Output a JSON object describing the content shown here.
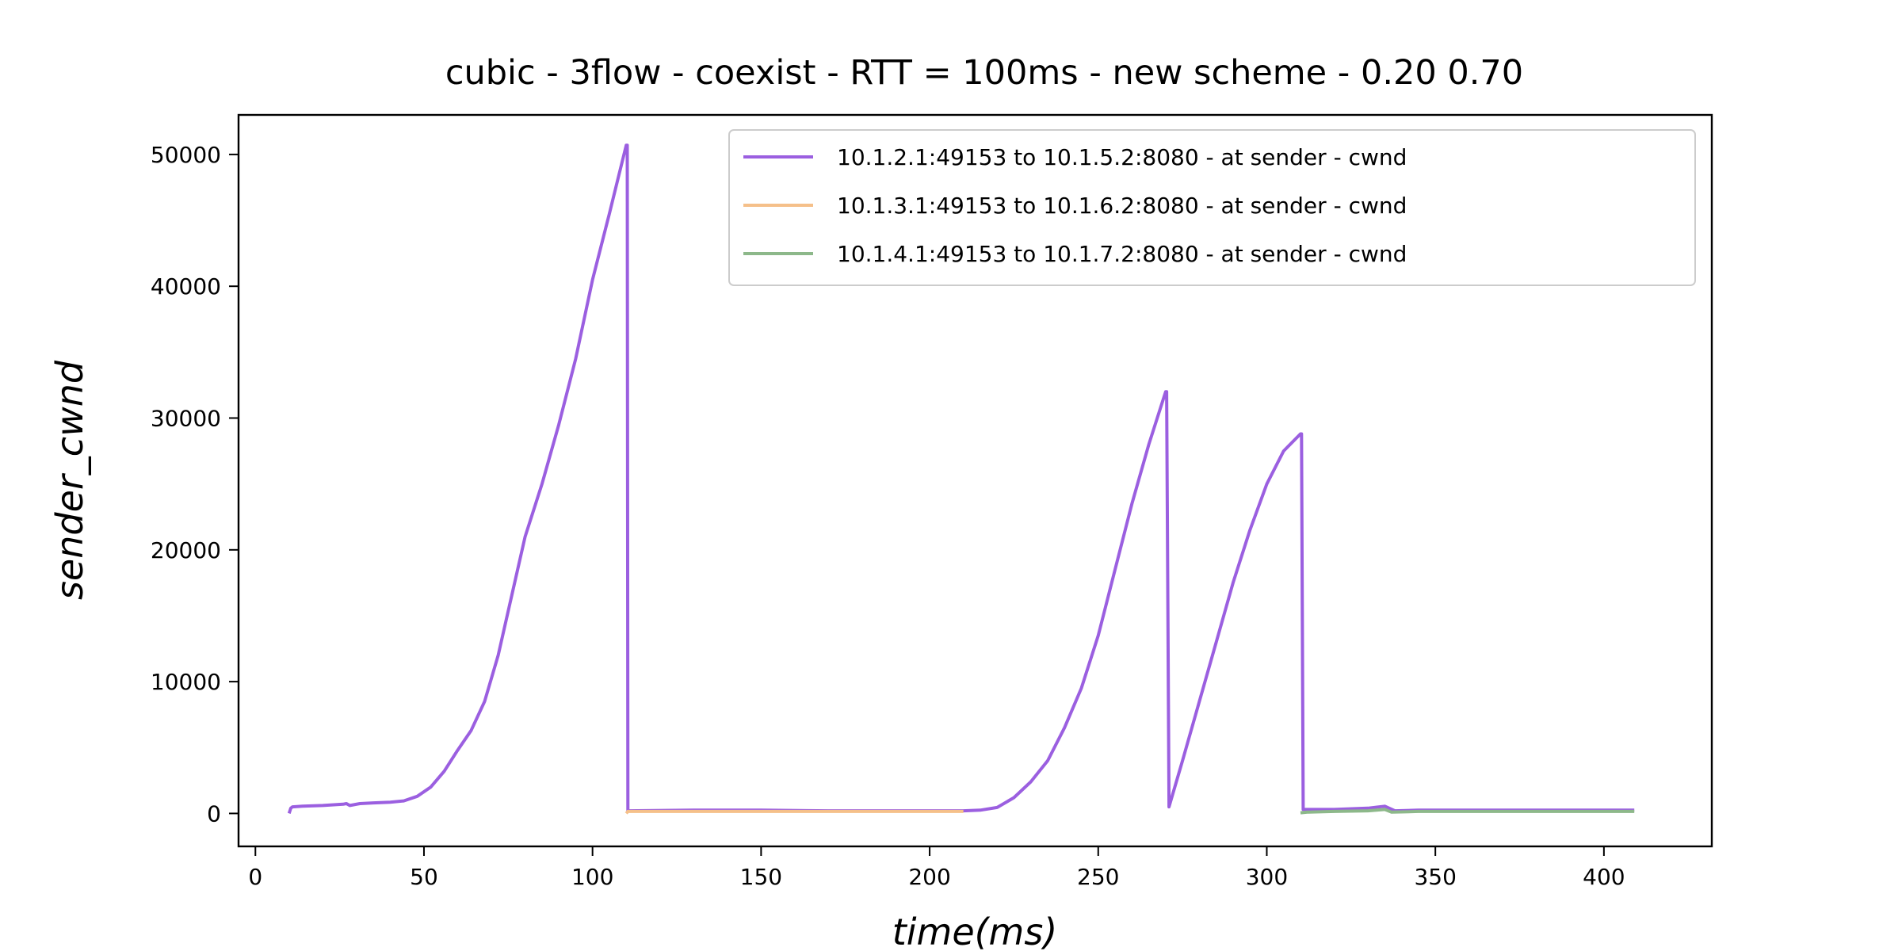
{
  "chart_data": {
    "type": "line",
    "title": "cubic - 3flow - coexist - RTT = 100ms - new scheme - 0.20 0.70",
    "xlabel": "time(ms)",
    "ylabel": "sender_cwnd",
    "xlim": [
      -5,
      432
    ],
    "ylim": [
      -2500,
      53000
    ],
    "xticks": [
      0,
      50,
      100,
      150,
      200,
      250,
      300,
      350,
      400
    ],
    "yticks": [
      0,
      10000,
      20000,
      30000,
      40000,
      50000
    ],
    "grid": false,
    "legend_position": "top-right",
    "series": [
      {
        "name": "10.1.2.1:49153 to 10.1.5.2:8080 - at sender - cwnd",
        "color": "#9b5fe0",
        "points": [
          [
            10,
            0
          ],
          [
            10.5,
            400
          ],
          [
            11,
            500
          ],
          [
            14,
            550
          ],
          [
            20,
            600
          ],
          [
            26,
            700
          ],
          [
            27,
            750
          ],
          [
            28,
            600
          ],
          [
            31,
            750
          ],
          [
            35,
            800
          ],
          [
            40,
            850
          ],
          [
            44,
            950
          ],
          [
            48,
            1300
          ],
          [
            52,
            2000
          ],
          [
            56,
            3200
          ],
          [
            60,
            4800
          ],
          [
            64,
            6300
          ],
          [
            68,
            8500
          ],
          [
            72,
            12000
          ],
          [
            76,
            16500
          ],
          [
            80,
            21000
          ],
          [
            85,
            25000
          ],
          [
            90,
            29500
          ],
          [
            95,
            34500
          ],
          [
            100,
            40500
          ],
          [
            105,
            45500
          ],
          [
            110,
            50700
          ],
          [
            110.3,
            50700
          ],
          [
            110.5,
            200
          ],
          [
            130,
            250
          ],
          [
            150,
            250
          ],
          [
            170,
            200
          ],
          [
            190,
            200
          ],
          [
            210,
            200
          ],
          [
            215,
            250
          ],
          [
            220,
            450
          ],
          [
            225,
            1200
          ],
          [
            230,
            2400
          ],
          [
            235,
            4000
          ],
          [
            240,
            6500
          ],
          [
            245,
            9500
          ],
          [
            250,
            13500
          ],
          [
            255,
            18500
          ],
          [
            260,
            23500
          ],
          [
            265,
            28000
          ],
          [
            270,
            32000
          ],
          [
            270.3,
            32000
          ],
          [
            271,
            500
          ],
          [
            275,
            4000
          ],
          [
            280,
            8500
          ],
          [
            285,
            13000
          ],
          [
            290,
            17500
          ],
          [
            295,
            21500
          ],
          [
            300,
            25000
          ],
          [
            305,
            27500
          ],
          [
            310,
            28800
          ],
          [
            310.3,
            28800
          ],
          [
            310.8,
            300
          ],
          [
            320,
            300
          ],
          [
            330,
            400
          ],
          [
            335,
            550
          ],
          [
            338,
            200
          ],
          [
            345,
            250
          ],
          [
            360,
            250
          ],
          [
            380,
            250
          ],
          [
            400,
            250
          ],
          [
            409,
            250
          ]
        ]
      },
      {
        "name": "10.1.3.1:49153 to 10.1.6.2:8080 - at sender - cwnd",
        "color": "#f5c08a",
        "points": [
          [
            110,
            0
          ],
          [
            110.5,
            150
          ],
          [
            115,
            150
          ],
          [
            130,
            150
          ],
          [
            150,
            150
          ],
          [
            170,
            150
          ],
          [
            190,
            150
          ],
          [
            210,
            150
          ]
        ]
      },
      {
        "name": "10.1.4.1:49153 to 10.1.7.2:8080 - at sender - cwnd",
        "color": "#8db88a",
        "points": [
          [
            310,
            50
          ],
          [
            312,
            100
          ],
          [
            320,
            150
          ],
          [
            330,
            200
          ],
          [
            335,
            300
          ],
          [
            337,
            100
          ],
          [
            345,
            150
          ],
          [
            360,
            150
          ],
          [
            380,
            150
          ],
          [
            400,
            150
          ],
          [
            409,
            150
          ]
        ]
      }
    ]
  }
}
